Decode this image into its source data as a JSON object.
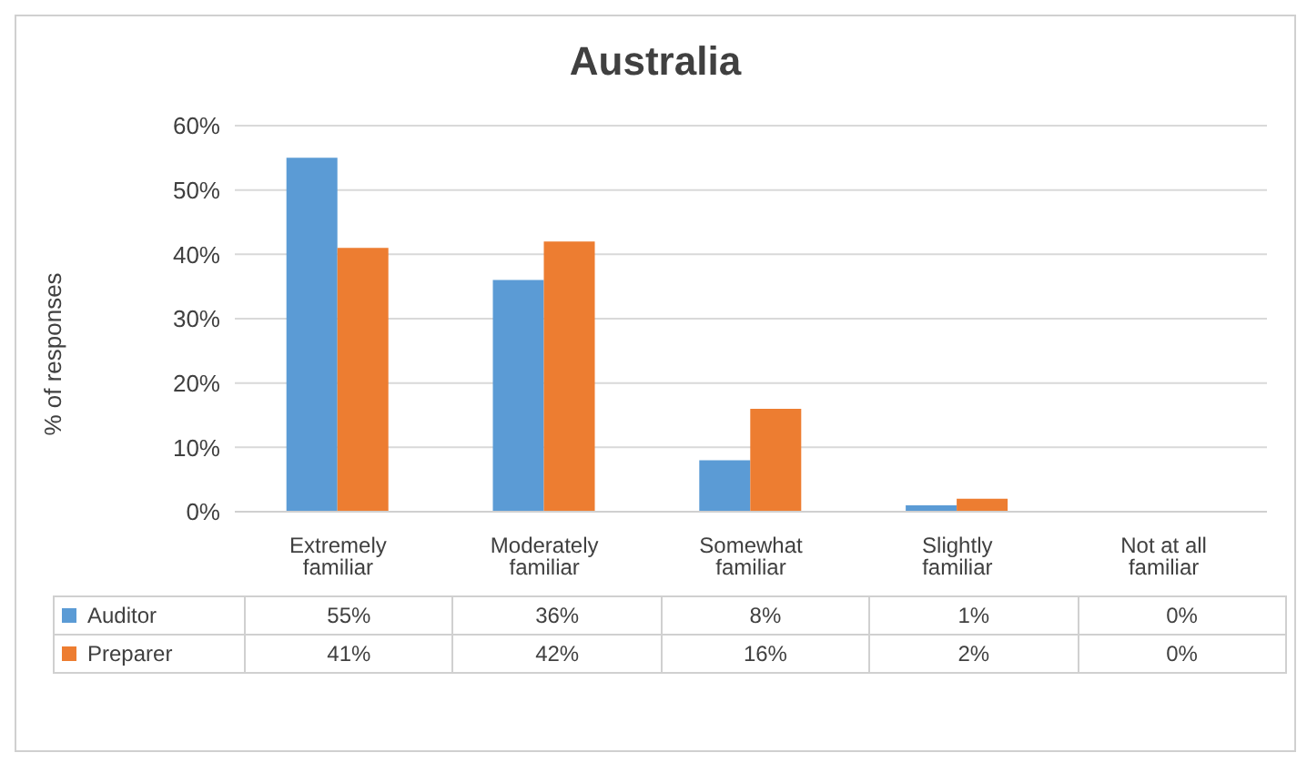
{
  "chart_data": {
    "type": "bar",
    "title": "Australia",
    "ylabel": "% of responses",
    "categories": [
      "Extremely familiar",
      "Moderately familiar",
      "Somewhat familiar",
      "Slightly familiar",
      "Not at all familiar"
    ],
    "series": [
      {
        "name": "Auditor",
        "color": "#5b9bd5",
        "values": [
          55,
          36,
          8,
          1,
          0
        ],
        "value_labels": [
          "55%",
          "36%",
          "8%",
          "1%",
          "0%"
        ]
      },
      {
        "name": "Preparer",
        "color": "#ed7d31",
        "values": [
          41,
          42,
          16,
          2,
          0
        ],
        "value_labels": [
          "41%",
          "42%",
          "16%",
          "2%",
          "0%"
        ]
      }
    ],
    "ylim": [
      0,
      60
    ],
    "yticks": [
      {
        "value": 0,
        "label": "0%"
      },
      {
        "value": 10,
        "label": "10%"
      },
      {
        "value": 20,
        "label": "20%"
      },
      {
        "value": 30,
        "label": "30%"
      },
      {
        "value": 40,
        "label": "40%"
      },
      {
        "value": 50,
        "label": "50%"
      },
      {
        "value": 60,
        "label": "60%"
      }
    ],
    "grid": "y",
    "legend": "bottom"
  }
}
